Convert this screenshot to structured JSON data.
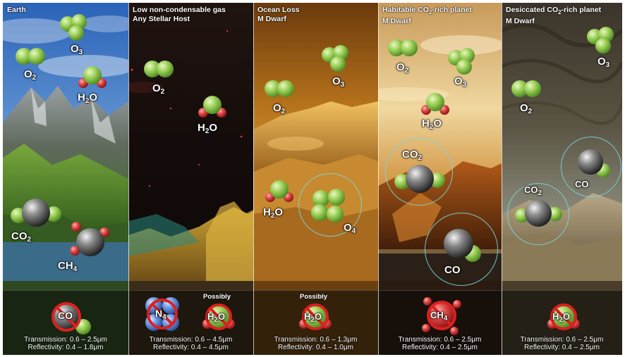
{
  "colors": {
    "molecule_green": "#8cc84b",
    "molecule_red": "#d23c3c",
    "molecule_gray": "#707070",
    "ring_cyan": "#78d7dc",
    "forbidden_red": "#dc2020",
    "nitrogen_blue": "#5a8ee0"
  },
  "panels": [
    {
      "title_line1": "Earth",
      "title_line2": "",
      "molecules": [
        {
          "formula": "O",
          "sub": "3",
          "icon": "ozone-molecule-icon"
        },
        {
          "formula": "O",
          "sub": "2",
          "icon": "oxygen-molecule-icon"
        },
        {
          "formula": "H",
          "sub": "2",
          "formula_tail": "O",
          "icon": "water-molecule-icon"
        },
        {
          "formula": "CO",
          "sub": "2",
          "icon": "carbon-dioxide-molecule-icon"
        },
        {
          "formula": "CH",
          "sub": "4",
          "icon": "methane-molecule-icon"
        }
      ],
      "absent": [
        {
          "formula": "CO",
          "sub": "",
          "icon": "no-carbon-monoxide-icon"
        }
      ],
      "transmission": "Transmission: 0.6 – 2.5μm",
      "reflectivity": "Reflectivity: 0.4 – 1.8μm"
    },
    {
      "title_line1": "Low non-condensable gas",
      "title_line2": "Any Stellar Host",
      "molecules": [
        {
          "formula": "O",
          "sub": "2",
          "icon": "oxygen-molecule-icon"
        },
        {
          "formula": "H",
          "sub": "2",
          "formula_tail": "O",
          "icon": "water-molecule-icon"
        }
      ],
      "absent": [
        {
          "formula": "N",
          "sub": "4",
          "icon": "no-nitrogen-icon"
        },
        {
          "formula": "H",
          "sub": "2",
          "formula_tail": "O",
          "icon": "no-water-icon",
          "qualifier": "Possibly"
        }
      ],
      "transmission": "Transmission: 0.6 – 4.5μm",
      "reflectivity": "Reflectivity: 0.4 – 4.5μm"
    },
    {
      "title_line1": "Ocean Loss",
      "title_line2": "M Dwarf",
      "molecules": [
        {
          "formula": "O",
          "sub": "3",
          "icon": "ozone-molecule-icon"
        },
        {
          "formula": "O",
          "sub": "2",
          "icon": "oxygen-molecule-icon"
        },
        {
          "formula": "H",
          "sub": "2",
          "formula_tail": "O",
          "icon": "water-molecule-icon"
        },
        {
          "formula": "O",
          "sub": "4",
          "icon": "tetraoxygen-molecule-icon"
        }
      ],
      "absent": [
        {
          "formula": "H",
          "sub": "2",
          "formula_tail": "O",
          "icon": "no-water-icon",
          "qualifier": "Possibly"
        }
      ],
      "transmission": "Transmission: 0.6 – 1.3μm",
      "reflectivity": "Reflectivity: 0.4 – 1.0μm"
    },
    {
      "title_line1": "Habitable CO",
      "title_sub": "2",
      "title_tail": "-rich planet",
      "title_line2": "M Dwarf",
      "molecules": [
        {
          "formula": "O",
          "sub": "2",
          "icon": "oxygen-molecule-icon"
        },
        {
          "formula": "O",
          "sub": "3",
          "icon": "ozone-molecule-icon"
        },
        {
          "formula": "H",
          "sub": "2",
          "formula_tail": "O",
          "icon": "water-molecule-icon"
        },
        {
          "formula": "CO",
          "sub": "2",
          "icon": "carbon-dioxide-molecule-icon"
        },
        {
          "formula": "CO",
          "sub": "",
          "icon": "carbon-monoxide-molecule-icon"
        }
      ],
      "absent": [
        {
          "formula": "CH",
          "sub": "4",
          "icon": "no-methane-icon"
        }
      ],
      "transmission": "Transmission: 0.6 – 2.5μm",
      "reflectivity": "Reflectivity: 0.4 – 2.5μm"
    },
    {
      "title_line1": "Desiccated CO",
      "title_sub": "2",
      "title_tail": "-rich planet",
      "title_line2": "M Dwarf",
      "molecules": [
        {
          "formula": "O",
          "sub": "3",
          "icon": "ozone-molecule-icon"
        },
        {
          "formula": "O",
          "sub": "2",
          "icon": "oxygen-molecule-icon"
        },
        {
          "formula": "CO",
          "sub": "",
          "icon": "carbon-monoxide-molecule-icon"
        },
        {
          "formula": "CO",
          "sub": "2",
          "icon": "carbon-dioxide-molecule-icon"
        }
      ],
      "absent": [
        {
          "formula": "H",
          "sub": "2",
          "formula_tail": "O",
          "icon": "no-water-icon"
        }
      ],
      "transmission": "Transmission: 0.6 – 2.5μm",
      "reflectivity": "Reflectivity: 0.4 – 2.5μm"
    }
  ]
}
